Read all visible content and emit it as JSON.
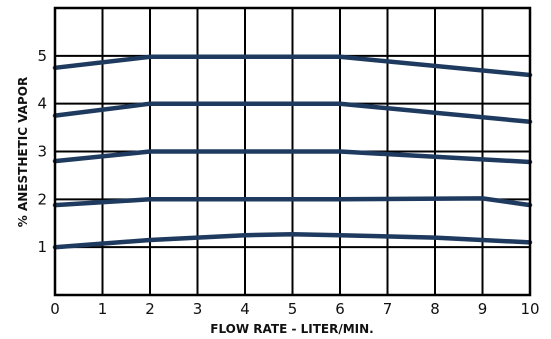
{
  "chart_data": {
    "type": "line",
    "title": "",
    "xlabel": "FLOW RATE - LITER/MIN.",
    "ylabel": "% ANESTHETIC VAPOR",
    "xlim": [
      0,
      10
    ],
    "ylim": [
      0,
      6
    ],
    "x_ticks": [
      "0",
      "1",
      "2",
      "3",
      "4",
      "5",
      "6",
      "7",
      "8",
      "9",
      "10"
    ],
    "y_ticks": [
      "1",
      "2",
      "3",
      "4",
      "5"
    ],
    "grid": true,
    "line_color": "#1f3a5f",
    "series": [
      {
        "x": [
          0,
          2,
          4,
          6,
          10
        ],
        "values": [
          4.75,
          4.98,
          4.98,
          4.98,
          4.6
        ]
      },
      {
        "x": [
          0,
          2,
          4,
          6,
          10
        ],
        "values": [
          3.75,
          4.0,
          4.0,
          4.0,
          3.62
        ]
      },
      {
        "x": [
          0,
          2,
          4,
          6,
          10
        ],
        "values": [
          2.8,
          3.0,
          3.0,
          3.0,
          2.78
        ]
      },
      {
        "x": [
          0,
          2,
          4,
          6,
          9,
          10
        ],
        "values": [
          1.88,
          2.0,
          2.0,
          2.0,
          2.02,
          1.88
        ]
      },
      {
        "x": [
          0,
          2,
          4,
          5,
          6,
          8,
          10
        ],
        "values": [
          1.0,
          1.15,
          1.25,
          1.27,
          1.25,
          1.2,
          1.1
        ]
      }
    ]
  }
}
